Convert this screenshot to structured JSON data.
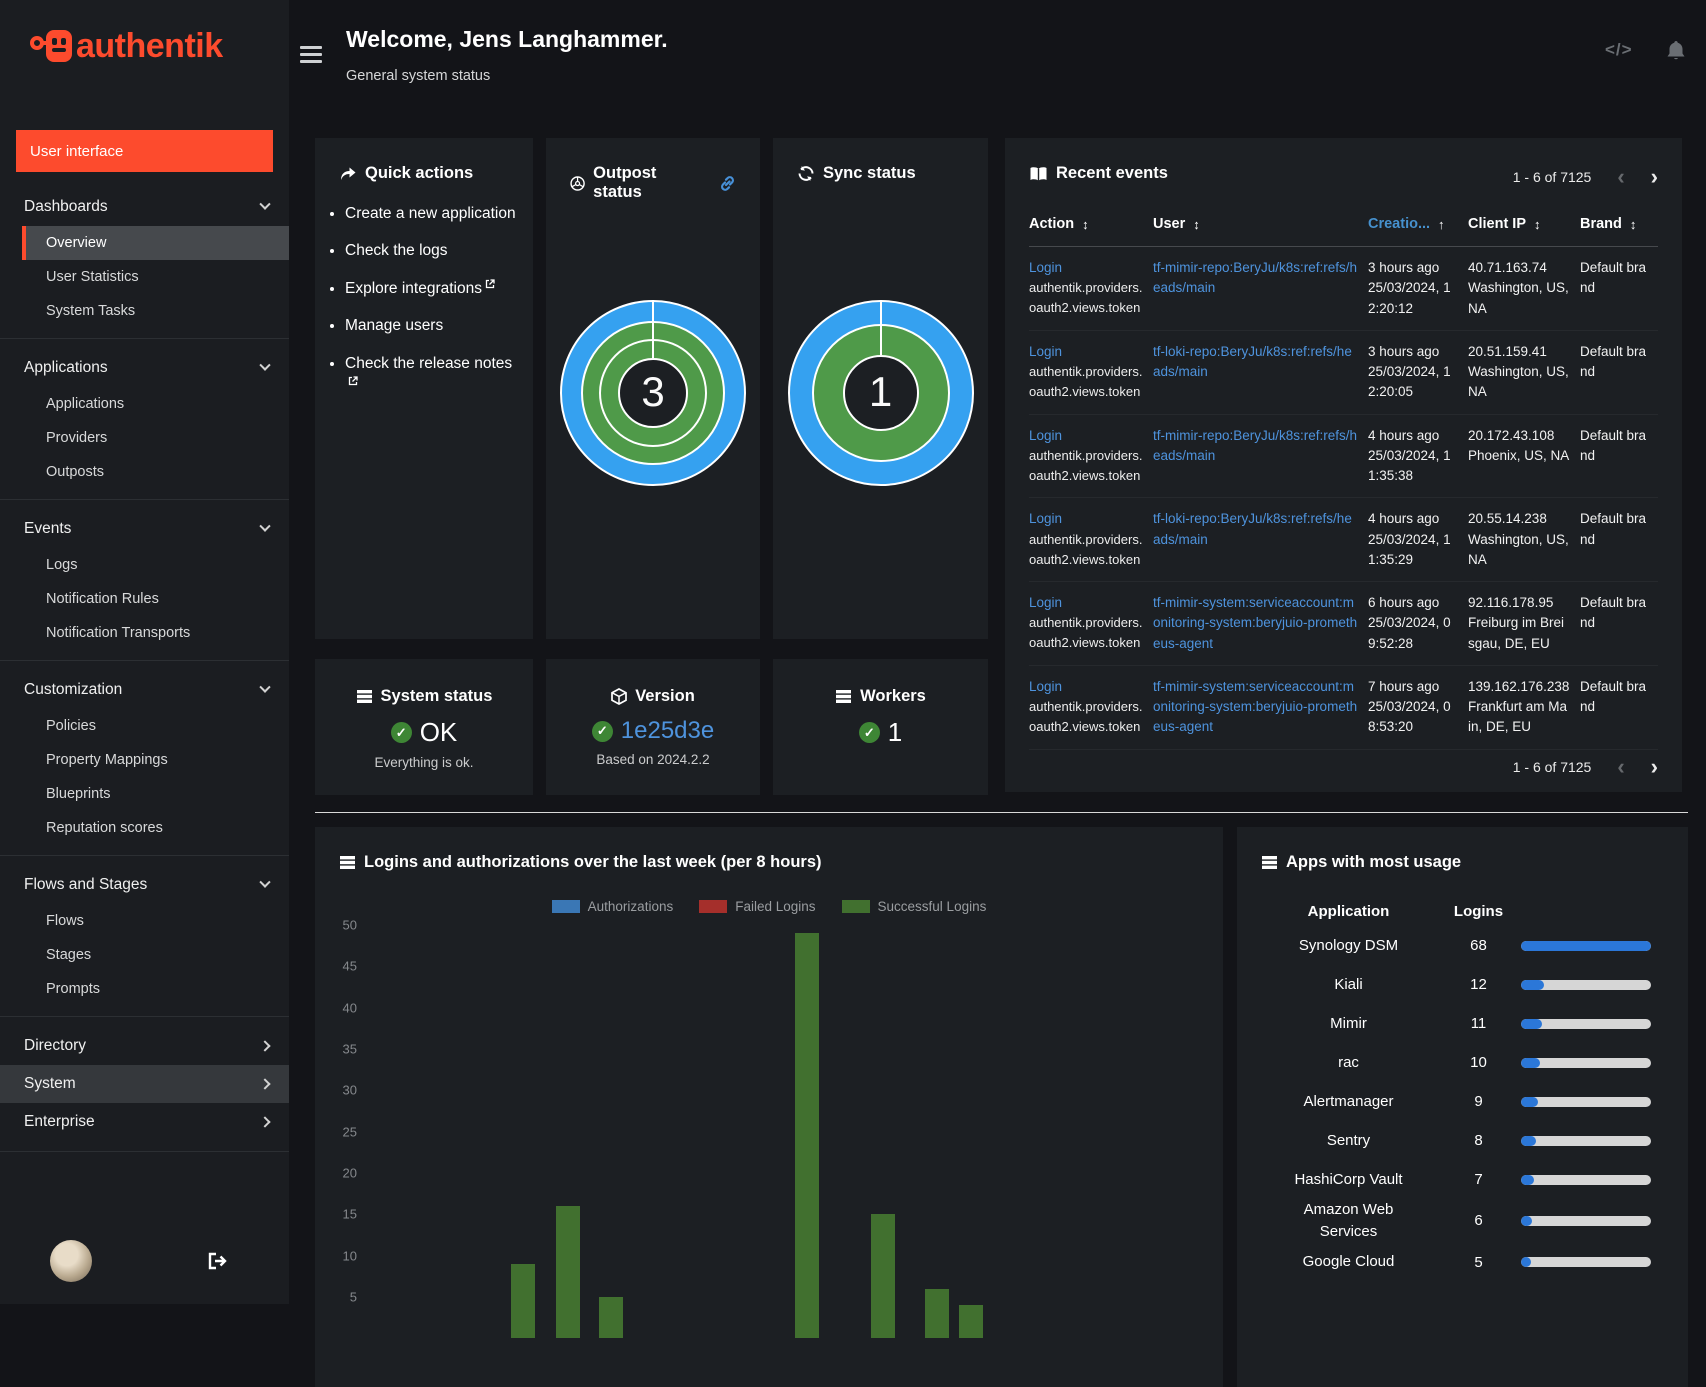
{
  "app": {
    "logo_text": "authentik"
  },
  "colors": {
    "accent_orange": "#fd4b2d",
    "link_blue": "#4e93dd",
    "donut_blue": "#35a1f0",
    "donut_green": "#4f9a49",
    "check_green": "#3e8635",
    "progress_blue": "#2b77d8"
  },
  "sidebar": {
    "user_interface_label": "User interface",
    "sections": [
      {
        "type": "group",
        "label": "Dashboards",
        "items": [
          {
            "label": "Overview",
            "active": true
          },
          {
            "label": "User Statistics",
            "active": false
          },
          {
            "label": "System Tasks",
            "active": false
          }
        ]
      },
      {
        "type": "group",
        "label": "Applications",
        "items": [
          {
            "label": "Applications",
            "active": false
          },
          {
            "label": "Providers",
            "active": false
          },
          {
            "label": "Outposts",
            "active": false
          }
        ]
      },
      {
        "type": "group",
        "label": "Events",
        "items": [
          {
            "label": "Logs",
            "active": false
          },
          {
            "label": "Notification Rules",
            "active": false
          },
          {
            "label": "Notification Transports",
            "active": false
          }
        ]
      },
      {
        "type": "group",
        "label": "Customization",
        "items": [
          {
            "label": "Policies",
            "active": false
          },
          {
            "label": "Property Mappings",
            "active": false
          },
          {
            "label": "Blueprints",
            "active": false
          },
          {
            "label": "Reputation scores",
            "active": false
          }
        ]
      },
      {
        "type": "group",
        "label": "Flows and Stages",
        "items": [
          {
            "label": "Flows",
            "active": false
          },
          {
            "label": "Stages",
            "active": false
          },
          {
            "label": "Prompts",
            "active": false
          }
        ]
      },
      {
        "type": "collapsed",
        "label": "Directory",
        "highlighted": false
      },
      {
        "type": "collapsed",
        "label": "System",
        "highlighted": true
      },
      {
        "type": "collapsed",
        "label": "Enterprise",
        "highlighted": false
      }
    ]
  },
  "header": {
    "title": "Welcome, Jens Langhammer.",
    "subtitle": "General system status"
  },
  "quick_actions": {
    "title": "Quick actions",
    "items": [
      {
        "label": "Create a new application",
        "external": false
      },
      {
        "label": "Check the logs",
        "external": false
      },
      {
        "label": "Explore integrations",
        "external": true
      },
      {
        "label": "Manage users",
        "external": false
      },
      {
        "label": "Check the release notes",
        "external": true
      }
    ]
  },
  "outpost_status": {
    "title": "Outpost status",
    "value": "3",
    "rings": 3
  },
  "sync_status": {
    "title": "Sync status",
    "value": "1",
    "rings": 2
  },
  "recent_events": {
    "title": "Recent events",
    "pagination": "1 - 6 of 7125",
    "columns": [
      {
        "label": "Action",
        "sorted": false
      },
      {
        "label": "User",
        "sorted": false
      },
      {
        "label": "Creatio...",
        "sorted": true
      },
      {
        "label": "Client IP",
        "sorted": false
      },
      {
        "label": "Brand",
        "sorted": false
      }
    ],
    "rows": [
      {
        "action": "Login",
        "action_sub": "authentik.providers.oauth2.views.token",
        "user": "tf-mimir-repo:BeryJu/k8s:ref:refs/heads/main",
        "time_ago": "3 hours ago",
        "timestamp": "25/03/2024, 12:20:12",
        "ip": "40.71.163.74",
        "location": "Washington, US, NA",
        "brand": "Default brand"
      },
      {
        "action": "Login",
        "action_sub": "authentik.providers.oauth2.views.token",
        "user": "tf-loki-repo:BeryJu/k8s:ref:refs/heads/main",
        "time_ago": "3 hours ago",
        "timestamp": "25/03/2024, 12:20:05",
        "ip": "20.51.159.41",
        "location": "Washington, US, NA",
        "brand": "Default brand"
      },
      {
        "action": "Login",
        "action_sub": "authentik.providers.oauth2.views.token",
        "user": "tf-mimir-repo:BeryJu/k8s:ref:refs/heads/main",
        "time_ago": "4 hours ago",
        "timestamp": "25/03/2024, 11:35:38",
        "ip": "20.172.43.108",
        "location": "Phoenix, US, NA",
        "brand": "Default brand"
      },
      {
        "action": "Login",
        "action_sub": "authentik.providers.oauth2.views.token",
        "user": "tf-loki-repo:BeryJu/k8s:ref:refs/heads/main",
        "time_ago": "4 hours ago",
        "timestamp": "25/03/2024, 11:35:29",
        "ip": "20.55.14.238",
        "location": "Washington, US, NA",
        "brand": "Default brand"
      },
      {
        "action": "Login",
        "action_sub": "authentik.providers.oauth2.views.token",
        "user": "tf-mimir-system:serviceaccount:monitoring-system:beryjuio-prometheus-agent",
        "time_ago": "6 hours ago",
        "timestamp": "25/03/2024, 09:52:28",
        "ip": "92.116.178.95",
        "location": "Freiburg im Breisgau, DE, EU",
        "brand": "Default brand"
      },
      {
        "action": "Login",
        "action_sub": "authentik.providers.oauth2.views.token",
        "user": "tf-mimir-system:serviceaccount:monitoring-system:beryjuio-prometheus-agent",
        "time_ago": "7 hours ago",
        "timestamp": "25/03/2024, 08:53:20",
        "ip": "139.162.176.238",
        "location": "Frankfurt am Main, DE, EU",
        "brand": "Default brand"
      }
    ]
  },
  "system_status": {
    "title": "System status",
    "value": "OK",
    "subtitle": "Everything is ok."
  },
  "version": {
    "title": "Version",
    "value": "1e25d3e",
    "subtitle": "Based on 2024.2.2"
  },
  "workers": {
    "title": "Workers",
    "value": "1"
  },
  "chart_data": {
    "type": "bar",
    "title": "Logins and authorizations over the last week (per 8 hours)",
    "legend": [
      {
        "label": "Authorizations",
        "color": "#3a77b5"
      },
      {
        "label": "Failed Logins",
        "color": "#a52f2b"
      },
      {
        "label": "Successful Logins",
        "color": "#41702f"
      }
    ],
    "ylim": [
      0,
      50
    ],
    "yticks": [
      50,
      45,
      40,
      35,
      30,
      25,
      20,
      15,
      10,
      5
    ],
    "grid": false,
    "legend_position": "top-center",
    "series": [
      {
        "name": "Successful Logins",
        "color": "#41702f",
        "points": [
          {
            "x_pct": 17.3,
            "value": 9
          },
          {
            "x_pct": 22.6,
            "value": 16
          },
          {
            "x_pct": 27.7,
            "value": 5
          },
          {
            "x_pct": 50.6,
            "value": 49
          },
          {
            "x_pct": 59.6,
            "value": 15
          },
          {
            "x_pct": 65.9,
            "value": 6
          },
          {
            "x_pct": 69.9,
            "value": 4
          }
        ]
      }
    ]
  },
  "apps_usage": {
    "title": "Apps with most usage",
    "columns": [
      "Application",
      "Logins"
    ],
    "max": 68,
    "rows": [
      {
        "app": "Synology DSM",
        "logins": 68
      },
      {
        "app": "Kiali",
        "logins": 12
      },
      {
        "app": "Mimir",
        "logins": 11
      },
      {
        "app": "rac",
        "logins": 10
      },
      {
        "app": "Alertmanager",
        "logins": 9
      },
      {
        "app": "Sentry",
        "logins": 8
      },
      {
        "app": "HashiCorp Vault",
        "logins": 7
      },
      {
        "app": "Amazon Web Services",
        "logins": 6
      },
      {
        "app": "Google Cloud",
        "logins": 5
      }
    ]
  }
}
